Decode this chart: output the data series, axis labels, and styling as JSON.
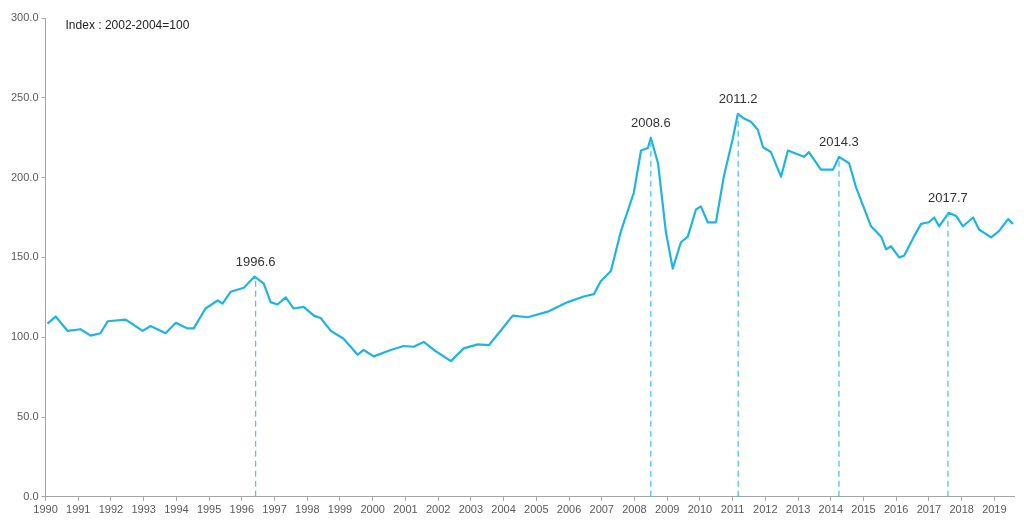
{
  "chart_data": {
    "type": "line",
    "annotations": [
      "Index : 2002-2004=100",
      {
        "text": "1996.6",
        "x": 1996.42,
        "y": 138
      },
      {
        "text": "2008.6",
        "x": 2008.5,
        "y": 225
      },
      {
        "text": "2011.2",
        "x": 2011.17,
        "y": 240
      },
      {
        "text": "2014.3",
        "x": 2014.25,
        "y": 213
      },
      {
        "text": "2017.7",
        "x": 2017.58,
        "y": 178
      }
    ],
    "x": [
      1990.06,
      1990.31,
      1990.67,
      1991.07,
      1991.38,
      1991.68,
      1991.9,
      1992.45,
      1992.97,
      1993.21,
      1993.67,
      1993.98,
      1994.34,
      1994.53,
      1994.89,
      1995.26,
      1995.41,
      1995.66,
      1996.06,
      1996.39,
      1996.67,
      1996.88,
      1997.09,
      1997.34,
      1997.58,
      1997.89,
      1998.2,
      1998.41,
      1998.72,
      1999.11,
      1999.54,
      1999.72,
      2000.03,
      2000.55,
      2000.95,
      2001.25,
      2001.56,
      2001.87,
      2002.39,
      2002.78,
      2003.21,
      2003.55,
      2003.91,
      2004.28,
      2004.74,
      2005.35,
      2005.96,
      2006.45,
      2006.76,
      2006.97,
      2007.28,
      2007.58,
      2007.98,
      2008.2,
      2008.41,
      2008.5,
      2008.72,
      2008.96,
      2009.17,
      2009.42,
      2009.63,
      2009.88,
      2010.03,
      2010.24,
      2010.49,
      2010.73,
      2011.01,
      2011.16,
      2011.35,
      2011.56,
      2011.77,
      2011.93,
      2012.17,
      2012.48,
      2012.69,
      2013.18,
      2013.33,
      2013.7,
      2014.07,
      2014.25,
      2014.56,
      2014.77,
      2015.23,
      2015.54,
      2015.69,
      2015.84,
      2016.09,
      2016.24,
      2016.54,
      2016.76,
      2017.0,
      2017.16,
      2017.31,
      2017.61,
      2017.83,
      2018.04,
      2018.35,
      2018.53,
      2018.9,
      2019.14,
      2019.42,
      2019.57
    ],
    "series": [
      {
        "color": "#1eb4e6",
        "values": [
          108.5,
          113,
          104,
          105,
          101,
          102.5,
          110,
          111,
          104,
          107,
          102.5,
          109,
          105.5,
          105.5,
          118,
          123,
          121,
          128.5,
          131,
          138,
          133.5,
          122,
          120.5,
          125,
          118,
          119,
          113.5,
          112,
          104,
          99,
          89,
          92,
          88,
          92,
          94.5,
          94,
          97,
          92,
          85,
          93,
          95.5,
          95,
          104,
          113.5,
          112.5,
          116,
          122,
          125.5,
          127,
          135,
          141.5,
          166,
          190.5,
          217,
          218.5,
          225,
          209,
          166,
          143,
          159.5,
          163,
          180,
          182,
          172,
          172,
          200.5,
          225,
          240,
          237,
          235,
          230,
          219,
          216,
          200.5,
          217,
          213,
          216,
          205,
          205,
          213,
          209,
          194,
          169.5,
          163,
          155,
          157,
          150,
          151,
          163,
          171,
          172,
          175,
          169.5,
          178,
          176,
          169.5,
          175,
          167.5,
          162.5,
          166.5,
          174,
          171
        ]
      }
    ],
    "xlim": [
      1990,
      2019.6
    ],
    "xticks": [
      1990,
      1991,
      1992,
      1993,
      1994,
      1995,
      1996,
      1997,
      1998,
      1999,
      2000,
      2001,
      2002,
      2003,
      2004,
      2005,
      2006,
      2007,
      2008,
      2009,
      2010,
      2011,
      2012,
      2013,
      2014,
      2015,
      2016,
      2017,
      2018,
      2019
    ],
    "ylim": [
      0,
      300
    ],
    "yticks": [
      {
        "value": 0,
        "label": "0.0"
      },
      {
        "value": 50,
        "label": "50.0"
      },
      {
        "value": 100,
        "label": "100.0"
      },
      {
        "value": 150,
        "label": "150.0"
      },
      {
        "value": 200,
        "label": "200.0"
      },
      {
        "value": 250,
        "label": "250.0"
      },
      {
        "value": 300,
        "label": "300.0"
      }
    ],
    "ref_lines": [
      {
        "axis": "x",
        "value": 1996.42,
        "color": "#4fc3f7",
        "line_style": "dashed"
      },
      {
        "axis": "x",
        "value": 2008.5,
        "color": "#4fc3f7",
        "line_style": "dashed"
      },
      {
        "axis": "x",
        "value": 2011.17,
        "color": "#4fc3f7",
        "line_style": "dashed"
      },
      {
        "axis": "x",
        "value": 2014.25,
        "color": "#4fc3f7",
        "line_style": "dashed"
      },
      {
        "axis": "x",
        "value": 2017.58,
        "color": "#4fc3f7",
        "line_style": "dashed"
      }
    ],
    "grid": false,
    "legend": false,
    "marker": "none",
    "line_style": "solid"
  }
}
